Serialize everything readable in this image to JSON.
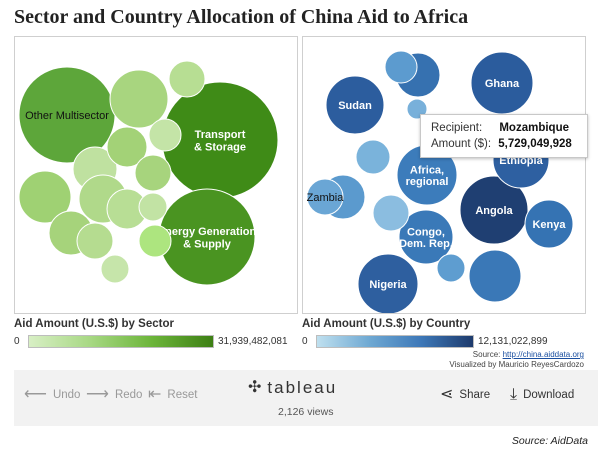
{
  "title": "Sector and Country Allocation of China Aid to Africa",
  "sector_panel": {
    "bubbles": [
      {
        "label": "Other Multisector",
        "color": "#5da63a",
        "text_color": "#111"
      },
      {
        "label": "Transport & Storage",
        "color": "#3f8b17",
        "text_color": "#ffffff"
      },
      {
        "label": "Energy Generation & Supply",
        "color": "#4a9421",
        "text_color": "#ffffff"
      },
      {
        "label": "",
        "color": "#a8d57f"
      },
      {
        "label": "",
        "color": "#b7de93"
      },
      {
        "label": "",
        "color": "#9fd173"
      },
      {
        "label": "",
        "color": "#bfe1a0"
      },
      {
        "label": "",
        "color": "#a3d277"
      },
      {
        "label": "",
        "color": "#a7d47d"
      },
      {
        "label": "",
        "color": "#c4e4a7"
      },
      {
        "label": "",
        "color": "#b0d98a"
      },
      {
        "label": "",
        "color": "#a6d37b"
      },
      {
        "label": "",
        "color": "#b8de95"
      },
      {
        "label": "",
        "color": "#c2e3a4"
      },
      {
        "label": "",
        "color": "#b5dc90"
      },
      {
        "label": "",
        "color": "#c6e5aa"
      },
      {
        "label": "",
        "color": "#ade57f"
      }
    ],
    "legend": {
      "title": "Aid Amount (U.S.$) by Sector",
      "min": "0",
      "max": "31,939,482,081"
    }
  },
  "country_panel": {
    "bubbles": [
      {
        "label": "Sudan",
        "color": "#2c5d9e",
        "text_color": "#ffffff"
      },
      {
        "label": "Ghana",
        "color": "#2b5c9d",
        "text_color": "#ffffff"
      },
      {
        "label": "",
        "color": "#3671b0"
      },
      {
        "label": "",
        "color": "#5c9bcf"
      },
      {
        "label": "",
        "color": "#5b9ace"
      },
      {
        "label": "Africa, regional",
        "color": "#3c7cbb",
        "text_color": "#ffffff"
      },
      {
        "label": "Zambia",
        "color": "#6aa6d5",
        "text_color": "#111"
      },
      {
        "label": "Angola",
        "color": "#1f3f72",
        "text_color": "#ffffff"
      },
      {
        "label": "Ethiopia",
        "color": "#2e60a1",
        "text_color": "#ffffff"
      },
      {
        "label": "Kenya",
        "color": "#3573b3",
        "text_color": "#ffffff"
      },
      {
        "label": "Congo, Dem. Rep.",
        "color": "#3a79b8",
        "text_color": "#ffffff"
      },
      {
        "label": "Nigeria",
        "color": "#2e5f9f",
        "text_color": "#ffffff"
      },
      {
        "label": "",
        "color": "#3a78b7"
      },
      {
        "label": "",
        "color": "#78b0da"
      },
      {
        "label": "",
        "color": "#6ba7d5"
      },
      {
        "label": "",
        "color": "#7ab3db"
      },
      {
        "label": "",
        "color": "#8bbde0"
      },
      {
        "label": "",
        "color": "#5e9dd0"
      },
      {
        "label": "",
        "color": "#84b9de"
      }
    ],
    "legend": {
      "title": "Aid Amount (U.S.$) by Country",
      "min": "0",
      "max": "12,131,022,899"
    },
    "tooltip": {
      "recipient_label": "Recipient:",
      "recipient_value": "Mozambique",
      "amount_label": "Amount ($):",
      "amount_value": "5,729,049,928"
    }
  },
  "source": {
    "prefix": "Source:",
    "link": "http://china.aiddata.org",
    "visualized_by": "Visualized by Mauricio ReyesCardozo"
  },
  "toolbar": {
    "undo": "Undo",
    "redo": "Redo",
    "reset": "Reset",
    "brand": "tableau",
    "views": "2,126 views",
    "share": "Share",
    "download": "Download",
    "icons": {
      "undo": "arrow-left-icon",
      "redo": "arrow-right-icon",
      "reset": "reset-icon",
      "brand": "tableau-logo-icon",
      "share": "share-icon",
      "download": "download-icon"
    }
  },
  "credit": "Source: AidData"
}
